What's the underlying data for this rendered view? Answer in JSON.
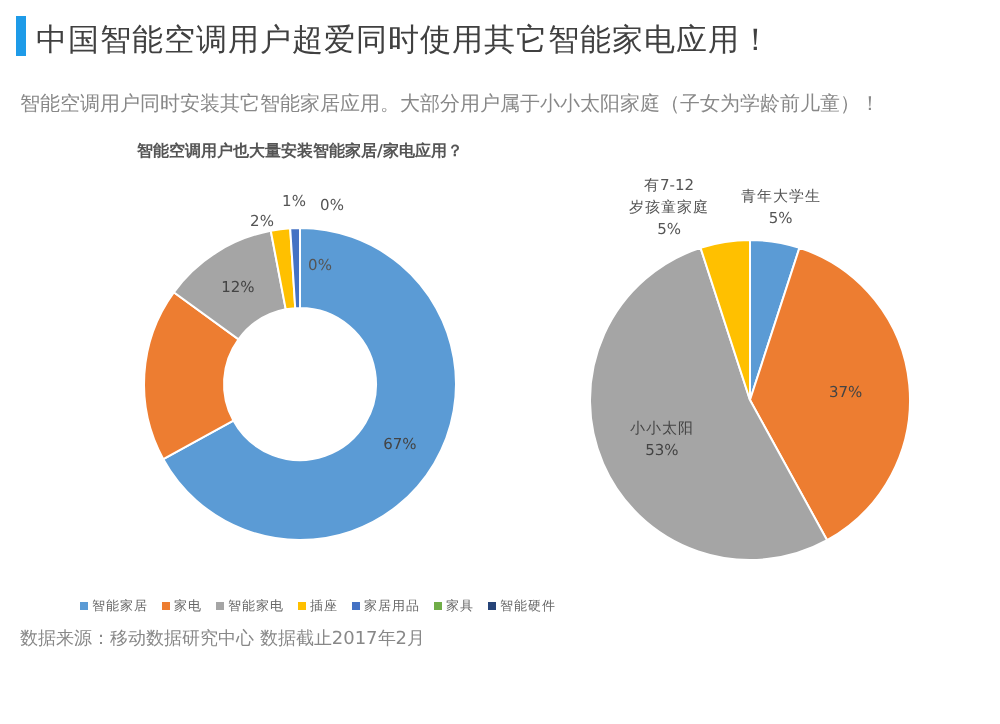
{
  "chart_data": [
    {
      "type": "donut",
      "title": "智能空调用户也大量安装智能家居/家电应用？",
      "annotations": [
        "中国智能空调用户超爱同时使用其它智能家电应用！",
        "智能空调用户同时安装其它智能家居应用。大部分用户属于小小太阳家庭（子女为学龄前儿童）！",
        "数据来源：移动数据研究中心  数据截止2017年2月"
      ],
      "categories": [
        "智能家居",
        "家电",
        "智能家电",
        "插座",
        "家居用品",
        "家具",
        "智能硬件"
      ],
      "values": [
        67,
        18,
        12,
        2,
        1,
        0,
        0
      ],
      "value_labels": [
        "67%",
        null,
        "12%",
        "2%",
        "1%",
        "0%",
        "0%"
      ],
      "colors": [
        "#5b9bd5",
        "#ed7d31",
        "#a5a5a5",
        "#ffc000",
        "#4472c4",
        "#70ad47",
        "#264478"
      ],
      "legend": "bottom"
    },
    {
      "type": "pie",
      "categories": [
        "青年大学生",
        null,
        "小小太阳",
        "有7-12岁孩童家庭"
      ],
      "values": [
        5,
        37,
        53,
        5
      ],
      "value_labels": [
        "5%",
        "37%",
        "53%",
        "5%"
      ],
      "colors": [
        "#5b9bd5",
        "#ed7d31",
        "#a5a5a5",
        "#ffc000"
      ],
      "legend": false
    }
  ]
}
